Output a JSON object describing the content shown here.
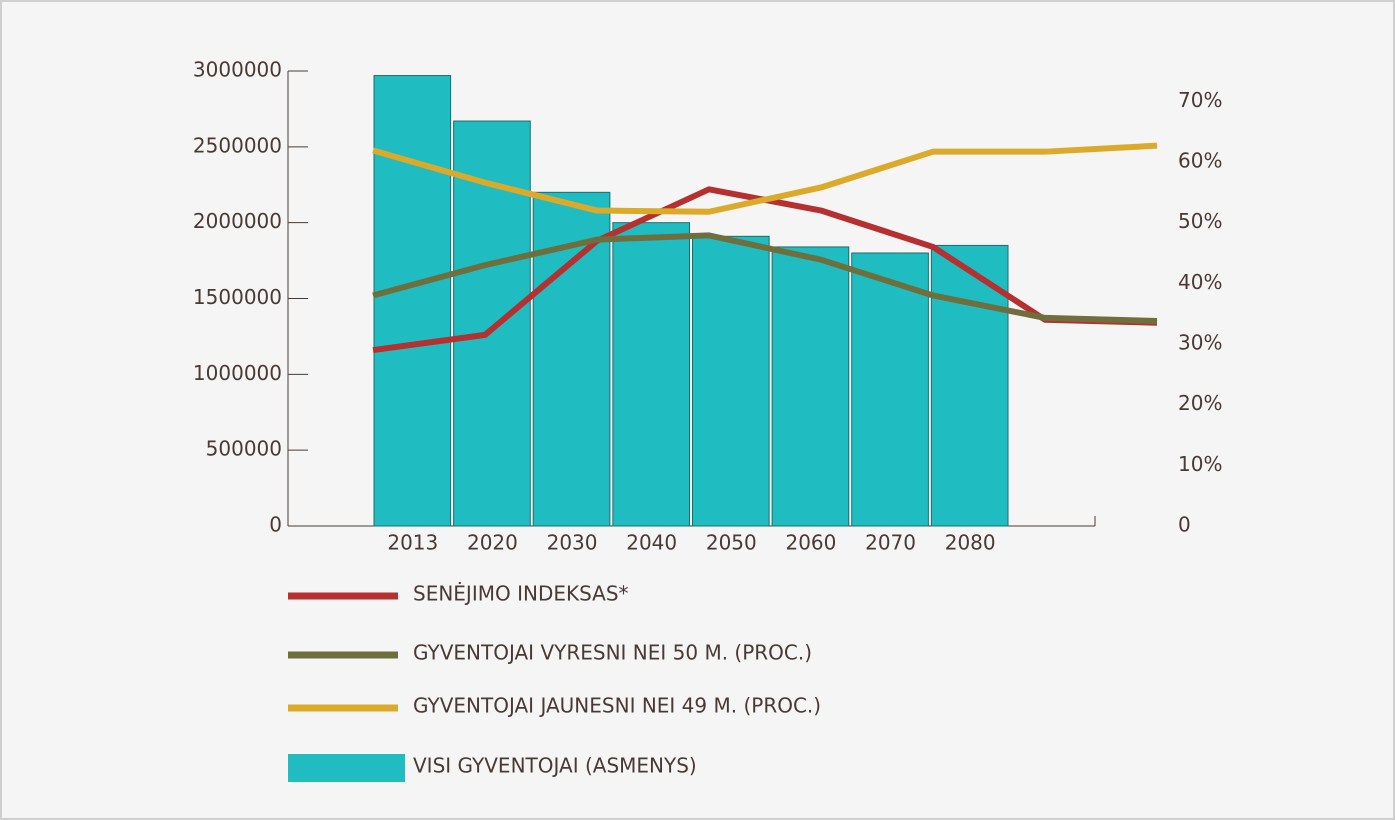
{
  "chart_data": {
    "type": "bar",
    "categories": [
      "2013",
      "2020",
      "2030",
      "2040",
      "2050",
      "2060",
      "2070",
      "2080"
    ],
    "series": [
      {
        "name": "SENĖJIMO INDEKSAS*",
        "type": "line",
        "axis": "y2",
        "color": "#b5302f",
        "values": [
          29,
          31.5,
          47,
          55.5,
          52,
          46,
          34,
          33.5
        ]
      },
      {
        "name": "GYVENTOJAI VYRESNI NEI 50 M. (PROC.)",
        "type": "line",
        "axis": "y2",
        "color": "#6f6f3e",
        "values": [
          38,
          43,
          47.2,
          47.9,
          43.9,
          38,
          34.3,
          33.8
        ]
      },
      {
        "name": "GYVENTOJAI JAUNESNI NEI 49 M. (PROC.)",
        "type": "line",
        "axis": "y2",
        "color": "#dcaa2a",
        "values": [
          61.9,
          56.6,
          52,
          51.8,
          55.8,
          61.7,
          61.7,
          62.7
        ]
      },
      {
        "name": "VISI GYVENTOJAI (ASMENYS)",
        "type": "bar",
        "color": "#1fbdc1",
        "values": [
          2970000,
          2670000,
          2200000,
          2000000,
          1910000,
          1840000,
          1800000,
          1850000
        ]
      }
    ],
    "ylim": [
      0,
      3000000
    ],
    "yticks": [
      0,
      500000,
      1000000,
      1500000,
      2000000,
      2500000,
      3000000
    ],
    "y2lim": [
      0,
      75
    ],
    "y2ticks": [
      0,
      {
        "value": 10,
        "label": "10%"
      },
      {
        "value": 20,
        "label": "20%"
      },
      {
        "value": 30,
        "label": "30%"
      },
      {
        "value": 40,
        "label": "40%"
      },
      {
        "value": 50,
        "label": "50%"
      },
      {
        "value": 60,
        "label": "60%"
      },
      {
        "value": 70,
        "label": "70%"
      }
    ]
  }
}
